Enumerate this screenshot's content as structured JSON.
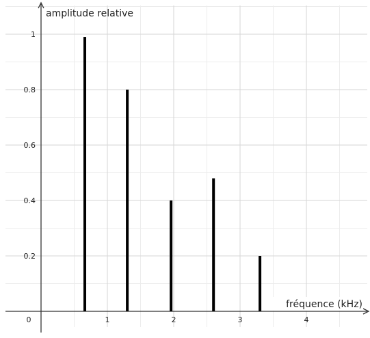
{
  "chart_data": {
    "type": "bar",
    "title": "",
    "xlabel": "fréquence (kHz)",
    "ylabel": "amplitude relative",
    "origin_label": "0",
    "x_ticks": [
      "1",
      "2",
      "3",
      "4"
    ],
    "y_ticks": [
      "0.2",
      "0.4",
      "0.6",
      "0.8",
      "1"
    ],
    "xlim": [
      -0.15,
      5
    ],
    "ylim": [
      -0.04,
      1.1
    ],
    "grid": true,
    "x": [
      0.66,
      1.3,
      1.96,
      2.6,
      3.3
    ],
    "values": [
      0.99,
      0.8,
      0.4,
      0.48,
      0.2
    ],
    "bar_color": "#000000",
    "grid_color": "#d6d6d6"
  }
}
